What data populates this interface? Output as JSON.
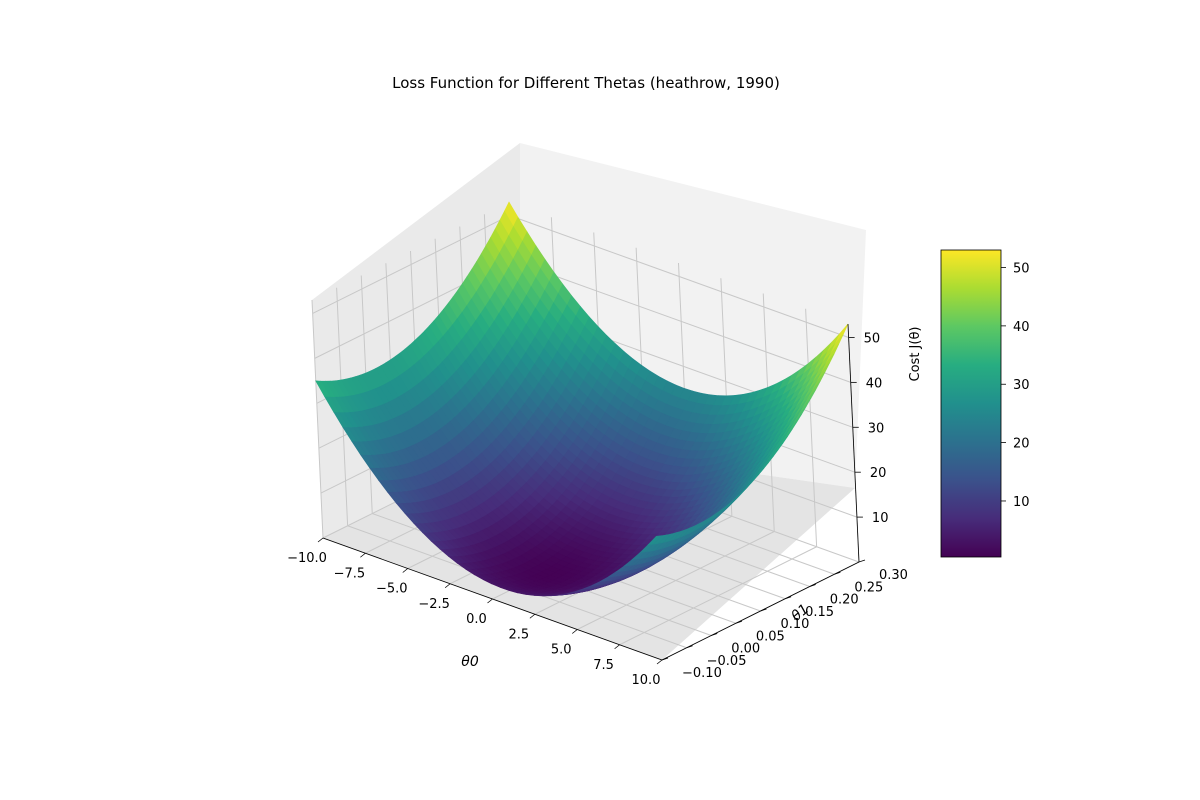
{
  "chart_data": {
    "type": "surface3d",
    "title": "Loss Function for Different Thetas (heathrow, 1990)",
    "xlabel": "θ0",
    "ylabel": "θ1",
    "zlabel": "Cost J(θ)",
    "colormap": "viridis",
    "xlim": [
      -10,
      10
    ],
    "ylim": [
      -0.1,
      0.3
    ],
    "zlim": [
      0,
      53
    ],
    "x_ticks": [
      "−10.0",
      "−7.5",
      "−5.0",
      "−2.5",
      "0.0",
      "2.5",
      "5.0",
      "7.5",
      "10.0"
    ],
    "y_ticks": [
      "−0.10",
      "−0.05",
      "0.00",
      "0.05",
      "0.10",
      "0.15",
      "0.20",
      "0.25",
      "0.30"
    ],
    "z_ticks": [
      "10",
      "20",
      "30",
      "40",
      "50"
    ],
    "colorbar_ticks": [
      "10",
      "20",
      "30",
      "40",
      "50"
    ],
    "colorbar_range": [
      0.4,
      53
    ],
    "surface_corners": {
      "x_-10_y_-0.1": 35,
      "x_-10_y_0.3": 53,
      "x_10_y_-0.1": 24,
      "x_10_y_0.3": 53
    },
    "minimum": {
      "x": 0.5,
      "y": 0.0,
      "z": 0.5
    },
    "grid": true
  }
}
